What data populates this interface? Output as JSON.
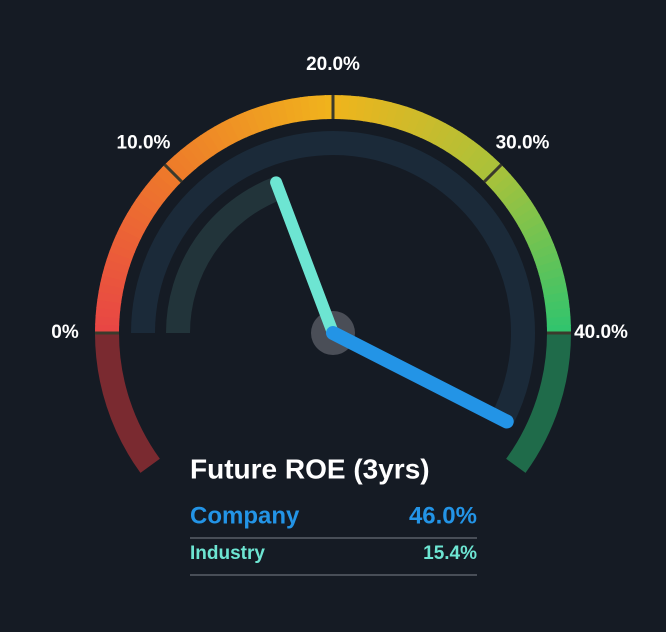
{
  "chart_data": {
    "type": "gauge",
    "title": "Future ROE (3yrs)",
    "series": [
      {
        "name": "Company",
        "color": "#2394e6",
        "values": [
          46
        ],
        "value_labels": [
          "46.0%"
        ]
      },
      {
        "name": "Industry",
        "color": "#6de5d2",
        "values": [
          15.4
        ],
        "value_labels": [
          "15.4%"
        ]
      }
    ],
    "ylim": [
      -8,
      48
    ],
    "yticks": [
      {
        "value": 0,
        "label": "0%"
      },
      {
        "value": 10,
        "label": "10.0%"
      },
      {
        "value": 20,
        "label": "20.0%"
      },
      {
        "value": 30,
        "label": "30.0%"
      },
      {
        "value": 40,
        "label": "40.0%"
      }
    ]
  }
}
